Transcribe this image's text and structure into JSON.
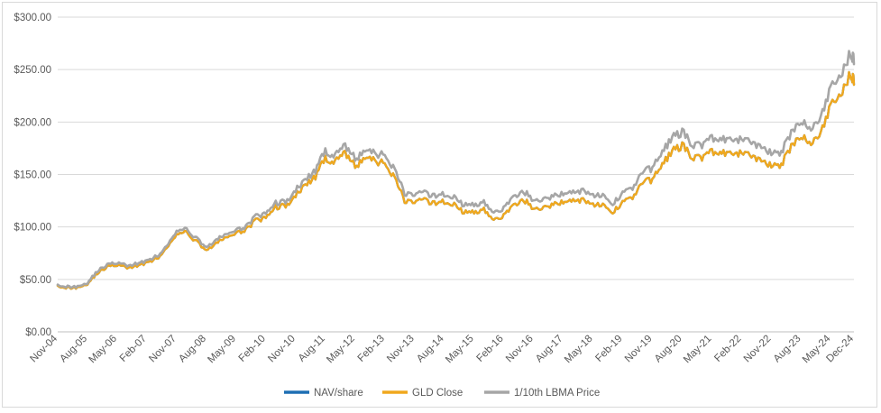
{
  "chart_data": {
    "type": "line",
    "title": "",
    "xlabel": "",
    "ylabel": "",
    "ylim": [
      0,
      300
    ],
    "yticks": [
      "$0.00",
      "$50.00",
      "$100.00",
      "$150.00",
      "$200.00",
      "$250.00",
      "$300.00"
    ],
    "ytick_values": [
      0,
      50,
      100,
      150,
      200,
      250,
      300
    ],
    "x_tick_labels": [
      "Nov-04",
      "Aug-05",
      "May-06",
      "Feb-07",
      "Nov-07",
      "Aug-08",
      "May-09",
      "Feb-10",
      "Nov-10",
      "Aug-11",
      "May-12",
      "Feb-13",
      "Nov-13",
      "Aug-14",
      "May-15",
      "Feb-16",
      "Nov-16",
      "Aug-17",
      "May-18",
      "Feb-19",
      "Nov-19",
      "Aug-20",
      "May-21",
      "Feb-22",
      "Nov-22",
      "Aug-23",
      "May-24",
      "Dec-24"
    ],
    "x_tick_months": [
      0,
      9,
      18,
      27,
      36,
      45,
      54,
      63,
      72,
      81,
      90,
      99,
      108,
      117,
      126,
      135,
      144,
      153,
      162,
      171,
      180,
      189,
      198,
      207,
      216,
      225,
      234,
      241
    ],
    "grid": true,
    "legend_position": "bottom",
    "series": [
      {
        "name": "NAV/share",
        "color": "#1f6fb4",
        "months": [
          0,
          3,
          6,
          9,
          12,
          15,
          18,
          21,
          24,
          27,
          30,
          33,
          36,
          39,
          42,
          45,
          48,
          51,
          54,
          57,
          60,
          63,
          66,
          69,
          72,
          75,
          78,
          81,
          84,
          87,
          90,
          93,
          96,
          99,
          102,
          105,
          108,
          111,
          114,
          117,
          120,
          123,
          126,
          129,
          132,
          135,
          138,
          141,
          144,
          147,
          150,
          153,
          156,
          159,
          162,
          165,
          168,
          171,
          174,
          177,
          180,
          183,
          186,
          189,
          192,
          195,
          198,
          201,
          204,
          207,
          210,
          213,
          216,
          219,
          222,
          225,
          228,
          231,
          234,
          237,
          240,
          241
        ],
        "values": [
          44,
          42,
          42,
          46,
          56,
          62,
          64,
          61,
          63,
          66,
          70,
          79,
          92,
          95,
          86,
          78,
          84,
          91,
          93,
          98,
          106,
          108,
          119,
          120,
          130,
          140,
          148,
          165,
          162,
          170,
          158,
          166,
          163,
          160,
          148,
          125,
          124,
          125,
          122,
          124,
          121,
          114,
          114,
          117,
          108,
          110,
          120,
          126,
          118,
          117,
          121,
          124,
          125,
          126,
          122,
          120,
          113,
          125,
          128,
          142,
          145,
          160,
          172,
          178,
          166,
          166,
          172,
          170,
          168,
          170,
          168,
          164,
          158,
          160,
          176,
          186,
          180,
          190,
          215,
          225,
          246,
          240
        ]
      },
      {
        "name": "GLD Close",
        "color": "#f0a81e",
        "months": [
          0,
          3,
          6,
          9,
          12,
          15,
          18,
          21,
          24,
          27,
          30,
          33,
          36,
          39,
          42,
          45,
          48,
          51,
          54,
          57,
          60,
          63,
          66,
          69,
          72,
          75,
          78,
          81,
          84,
          87,
          90,
          93,
          96,
          99,
          102,
          105,
          108,
          111,
          114,
          117,
          120,
          123,
          126,
          129,
          132,
          135,
          138,
          141,
          144,
          147,
          150,
          153,
          156,
          159,
          162,
          165,
          168,
          171,
          174,
          177,
          180,
          183,
          186,
          189,
          192,
          195,
          198,
          201,
          204,
          207,
          210,
          213,
          216,
          219,
          222,
          225,
          228,
          231,
          234,
          237,
          240,
          241
        ],
        "values": [
          44,
          42,
          42,
          46,
          56,
          62,
          64,
          61,
          63,
          66,
          70,
          79,
          92,
          95,
          86,
          78,
          84,
          91,
          93,
          98,
          106,
          108,
          119,
          120,
          130,
          140,
          148,
          165,
          162,
          170,
          158,
          166,
          163,
          160,
          148,
          125,
          124,
          125,
          122,
          124,
          121,
          114,
          114,
          117,
          108,
          110,
          120,
          126,
          118,
          117,
          121,
          124,
          125,
          126,
          122,
          120,
          113,
          125,
          128,
          142,
          145,
          160,
          172,
          178,
          166,
          166,
          172,
          170,
          168,
          170,
          168,
          164,
          158,
          160,
          176,
          186,
          180,
          190,
          215,
          225,
          246,
          240
        ]
      },
      {
        "name": "1/10th LBMA Price",
        "color": "#a6a6a6",
        "months": [
          0,
          3,
          6,
          9,
          12,
          15,
          18,
          21,
          24,
          27,
          30,
          33,
          36,
          39,
          42,
          45,
          48,
          51,
          54,
          57,
          60,
          63,
          66,
          69,
          72,
          75,
          78,
          81,
          84,
          87,
          90,
          93,
          96,
          99,
          102,
          105,
          108,
          111,
          114,
          117,
          120,
          123,
          126,
          129,
          132,
          135,
          138,
          141,
          144,
          147,
          150,
          153,
          156,
          159,
          162,
          165,
          168,
          171,
          174,
          177,
          180,
          183,
          186,
          189,
          192,
          195,
          198,
          201,
          204,
          207,
          210,
          213,
          216,
          219,
          222,
          225,
          228,
          231,
          234,
          237,
          240,
          241
        ],
        "values": [
          45,
          43,
          43,
          47,
          58,
          64,
          66,
          63,
          65,
          68,
          72,
          81,
          95,
          98,
          89,
          81,
          87,
          94,
          96,
          101,
          110,
          112,
          123,
          124,
          135,
          145,
          154,
          172,
          168,
          177,
          165,
          173,
          170,
          168,
          156,
          132,
          131,
          132,
          129,
          131,
          128,
          121,
          121,
          124,
          115,
          117,
          128,
          134,
          126,
          125,
          129,
          132,
          133,
          135,
          131,
          129,
          121,
          134,
          137,
          152,
          156,
          172,
          185,
          191,
          178,
          178,
          185,
          183,
          181,
          183,
          181,
          177,
          170,
          172,
          189,
          200,
          194,
          205,
          232,
          243,
          266,
          260
        ]
      }
    ]
  }
}
